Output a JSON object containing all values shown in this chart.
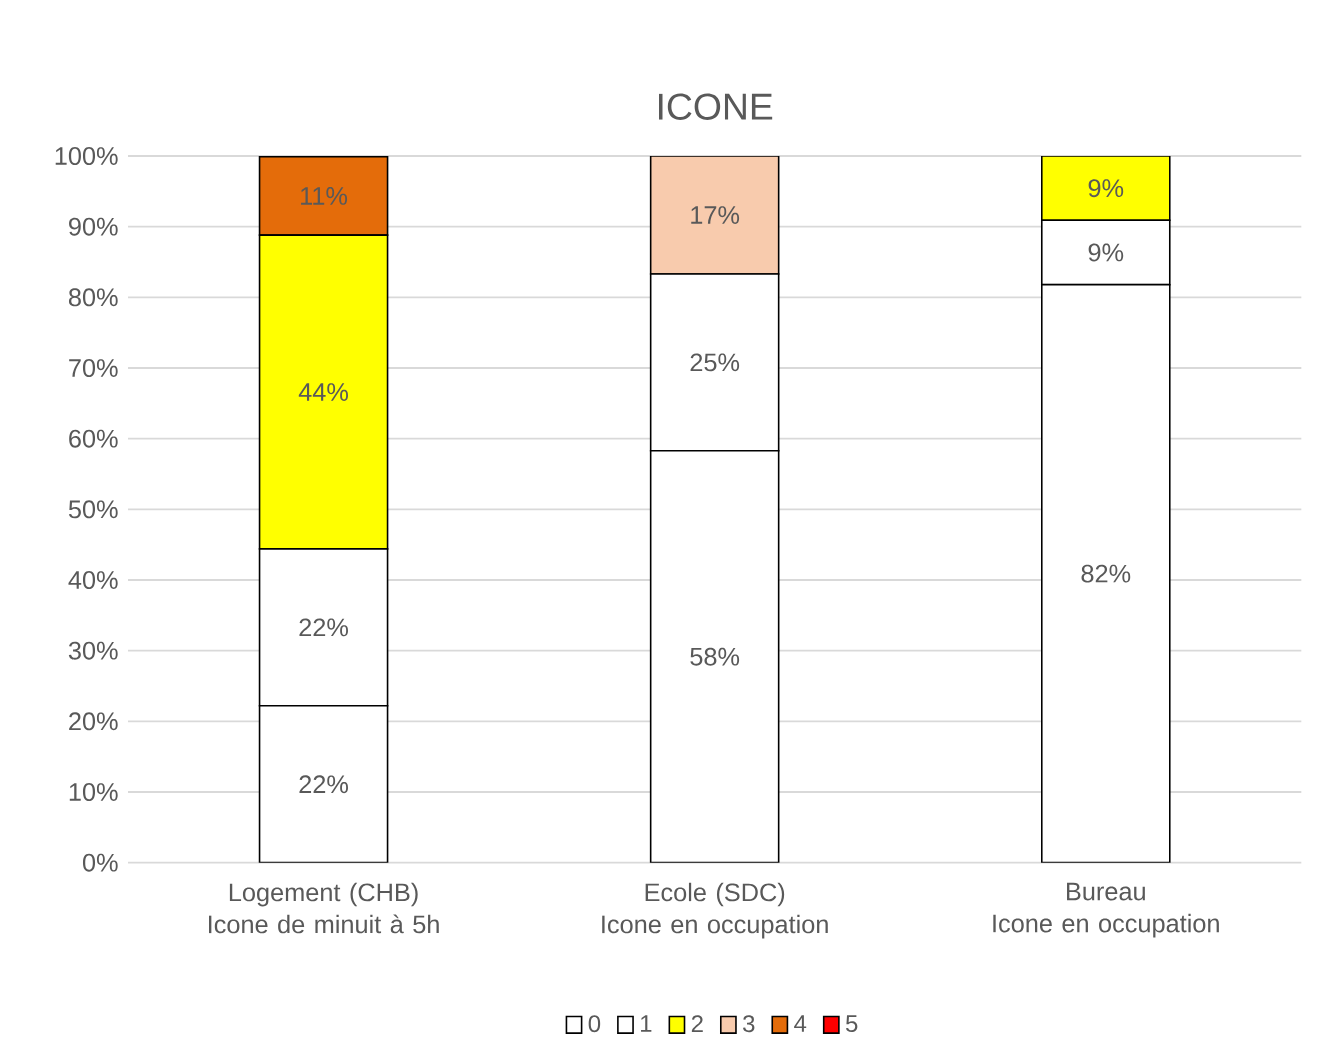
{
  "chart_data": {
    "type": "bar",
    "title": "ICONE",
    "stacked": true,
    "categories": [
      "Logement (CHB)\nIcone de minuit à 5h",
      "Ecole (SDC)\nIcone en occupation",
      "Bureau\nIcone en occupation"
    ],
    "series": [
      {
        "name": "0",
        "color": "#ffffff",
        "values": [
          22.2,
          58.3,
          81.8
        ],
        "value_labels": [
          "22%",
          "58%",
          "82%"
        ]
      },
      {
        "name": "1",
        "color": "#ffffff",
        "values": [
          22.2,
          25.0,
          9.1
        ],
        "value_labels": [
          "22%",
          "25%",
          "9%"
        ]
      },
      {
        "name": "2",
        "color": "#ffff00",
        "values": [
          44.4,
          0,
          9.1
        ],
        "value_labels": [
          "44%",
          null,
          "9%"
        ]
      },
      {
        "name": "3",
        "color": "#f8cbad",
        "values": [
          0,
          16.7,
          0
        ],
        "value_labels": [
          null,
          "17%",
          null
        ]
      },
      {
        "name": "4",
        "color": "#e46c0a",
        "values": [
          11.1,
          0,
          0
        ],
        "value_labels": [
          "11%",
          null,
          null
        ]
      },
      {
        "name": "5",
        "color": "#ff0000",
        "values": [
          0,
          0,
          0
        ],
        "value_labels": [
          null,
          null,
          null
        ]
      }
    ],
    "ylim": [
      0,
      100
    ],
    "yticks": [
      {
        "value": 0,
        "label": "0%"
      },
      {
        "value": 10,
        "label": "10%"
      },
      {
        "value": 20,
        "label": "20%"
      },
      {
        "value": 30,
        "label": "30%"
      },
      {
        "value": 40,
        "label": "40%"
      },
      {
        "value": 50,
        "label": "50%"
      },
      {
        "value": 60,
        "label": "60%"
      },
      {
        "value": 70,
        "label": "70%"
      },
      {
        "value": 80,
        "label": "80%"
      },
      {
        "value": 90,
        "label": "90%"
      },
      {
        "value": 100,
        "label": "100%"
      }
    ],
    "grid": "y",
    "legend": "bottom"
  }
}
